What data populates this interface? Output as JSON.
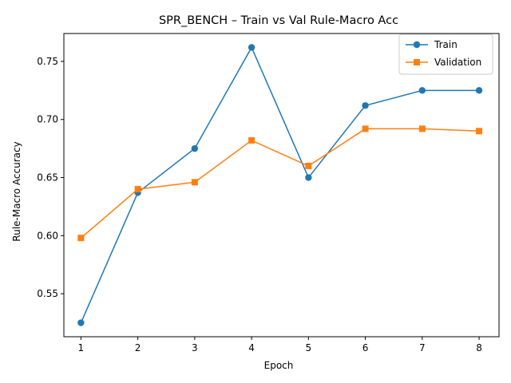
{
  "chart_data": {
    "type": "line",
    "title": "SPR_BENCH – Train vs Val Rule-Macro Acc",
    "xlabel": "Epoch",
    "ylabel": "Rule-Macro Accuracy",
    "x": [
      1,
      2,
      3,
      4,
      5,
      6,
      7,
      8
    ],
    "xlim": [
      0.7,
      8.35
    ],
    "ylim": [
      0.513,
      0.774
    ],
    "xticks": [
      "1",
      "2",
      "3",
      "4",
      "5",
      "6",
      "7",
      "8"
    ],
    "yticks": [
      0.55,
      0.6,
      0.65,
      0.7,
      0.75
    ],
    "ytick_labels": [
      "0.55",
      "0.60",
      "0.65",
      "0.70",
      "0.75"
    ],
    "grid": false,
    "legend_position": "top-right",
    "series": [
      {
        "name": "Train",
        "marker": "circle",
        "color": "#1f77b4",
        "values": [
          0.525,
          0.637,
          0.675,
          0.762,
          0.65,
          0.712,
          0.725,
          0.725
        ]
      },
      {
        "name": "Validation",
        "marker": "square",
        "color": "#ff7f0e",
        "values": [
          0.598,
          0.64,
          0.646,
          0.682,
          0.66,
          0.692,
          0.692,
          0.69
        ]
      }
    ]
  }
}
